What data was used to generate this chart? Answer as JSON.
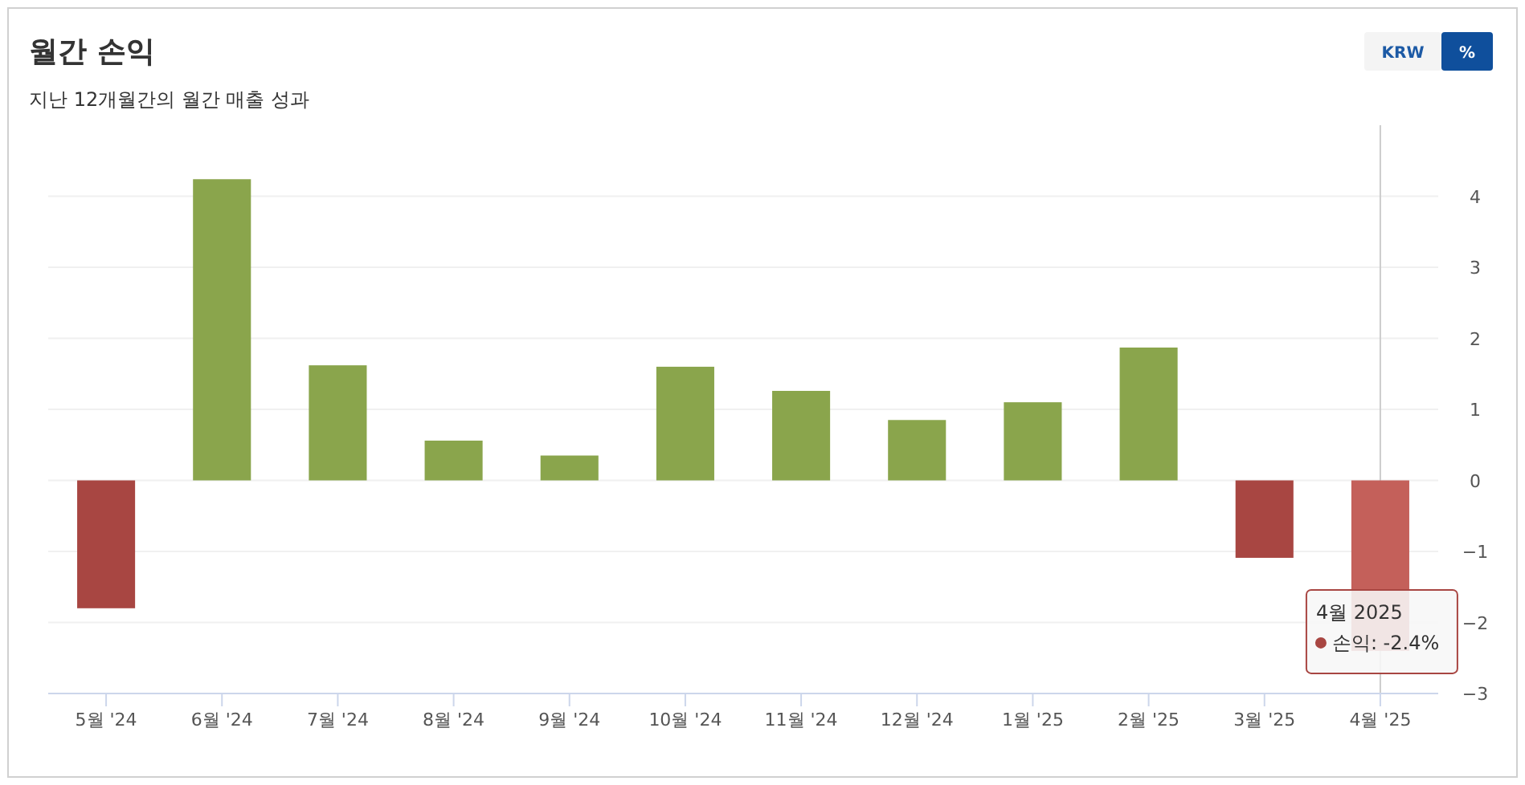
{
  "chart_data": {
    "type": "bar",
    "title": "월간 손익",
    "subtitle": "지난 12개월간의 월간 매출 성과",
    "categories": [
      "5월 '24",
      "6월 '24",
      "7월 '24",
      "8월 '24",
      "9월 '24",
      "10월 '24",
      "11월 '24",
      "12월 '24",
      "1월 '25",
      "2월 '25",
      "3월 '25",
      "4월 '25"
    ],
    "values": [
      -1.8,
      4.24,
      1.62,
      0.56,
      0.35,
      1.6,
      1.26,
      0.85,
      1.1,
      1.87,
      -1.09,
      -2.4
    ],
    "colors": [
      "#a84642",
      "#8aa54c",
      "#8aa54c",
      "#8aa54c",
      "#8aa54c",
      "#8aa54c",
      "#8aa54c",
      "#8aa54c",
      "#8aa54c",
      "#8aa54c",
      "#a84642",
      "#c4605a"
    ],
    "ylim": [
      -3,
      5
    ],
    "yticks": [
      -3,
      -2,
      -1,
      0,
      1,
      2,
      3,
      4
    ],
    "grid": "y",
    "ref_lines": [
      {
        "axis": "x",
        "value": "4월 '25",
        "color": "#cccccc"
      }
    ],
    "annotations": [
      "KRW",
      "%",
      {
        "text": "4월 2025\n손익: -2.4%",
        "x": "4월 '25",
        "y": -2.4
      }
    ]
  }
}
